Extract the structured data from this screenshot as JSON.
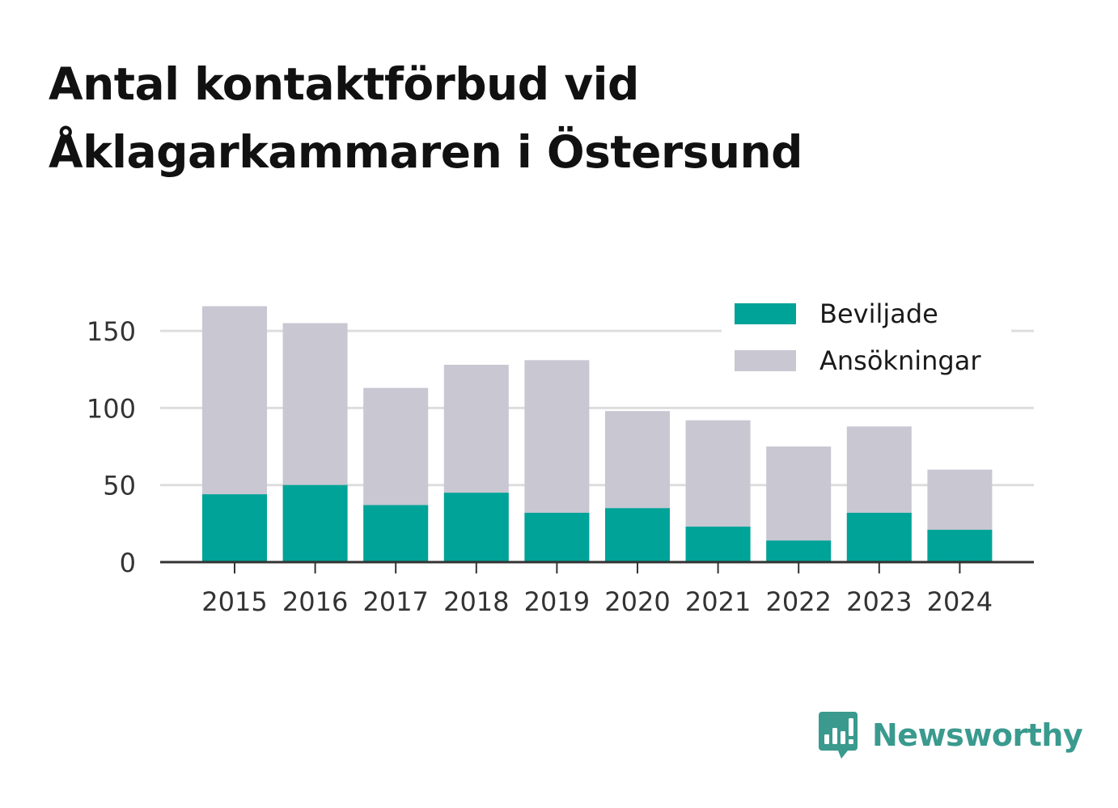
{
  "title_lines": [
    "Antal kontaktförbud vid",
    "Åklagarkammaren i Östersund"
  ],
  "brand": {
    "name": "Newsworthy",
    "icon": "newsworthy-logo-icon",
    "color": "#3a9a8e"
  },
  "colors": {
    "beviljade": "#00a398",
    "ansokningar": "#c8c7d2",
    "grid": "#dddddd",
    "axis": "#333333"
  },
  "chart_data": {
    "type": "bar",
    "stacking": "overlay",
    "title": "Antal kontaktförbud vid Åklagarkammaren i Östersund",
    "xlabel": "",
    "ylabel": "",
    "categories": [
      "2015",
      "2016",
      "2017",
      "2018",
      "2019",
      "2020",
      "2021",
      "2022",
      "2023",
      "2024"
    ],
    "series": [
      {
        "name": "Ansökningar",
        "values": [
          166,
          155,
          113,
          128,
          131,
          98,
          92,
          75,
          88,
          60
        ]
      },
      {
        "name": "Beviljade",
        "values": [
          44,
          50,
          37,
          45,
          32,
          35,
          23,
          14,
          32,
          21
        ]
      }
    ],
    "ylim": [
      0,
      170
    ],
    "yticks": [
      0,
      50,
      100,
      150
    ],
    "grid": true,
    "legend": {
      "placement": "top-right",
      "entries": [
        "Beviljade",
        "Ansökningar"
      ]
    }
  }
}
